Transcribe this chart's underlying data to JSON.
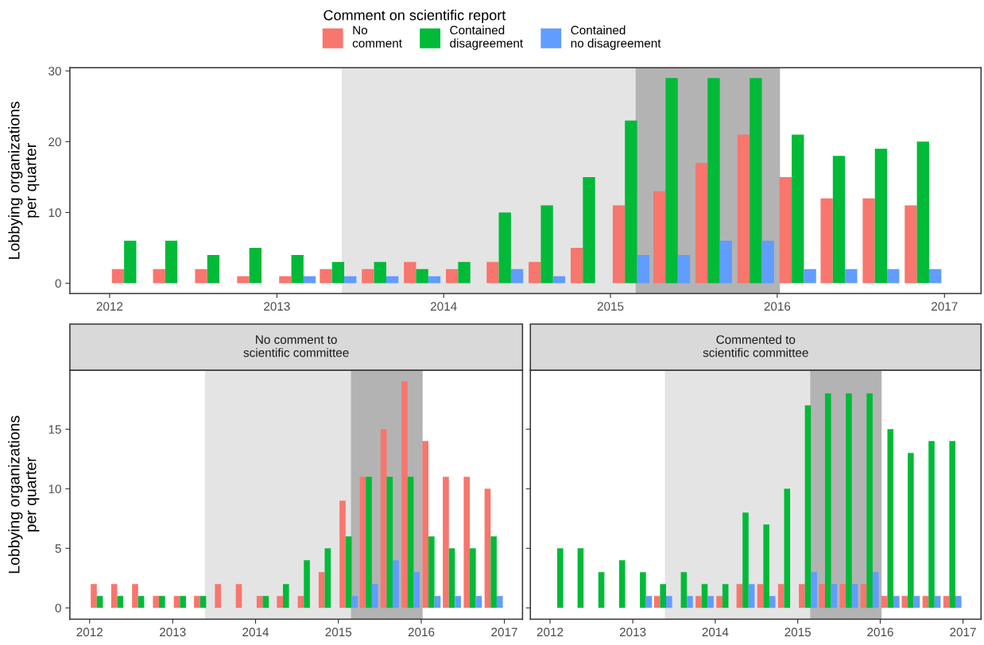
{
  "chart_data": [
    {
      "type": "bar",
      "ylabel": "Lobbying organizations\nper quarter",
      "legend_title": "Comment on\nscientific report",
      "legend": "top",
      "x": [
        "2012-02-15",
        "2012-05-15",
        "2012-08-15",
        "2012-11-15",
        "2013-02-15",
        "2013-05-15",
        "2013-08-15",
        "2013-11-15",
        "2014-02-15",
        "2014-05-15",
        "2014-08-15",
        "2014-11-15",
        "2015-02-15",
        "2015-05-15",
        "2015-08-15",
        "2015-11-15",
        "2016-02-15",
        "2016-05-15",
        "2016-08-15",
        "2016-11-15"
      ],
      "series": [
        {
          "name": "No\ncomment",
          "color": "#f8766d",
          "values": [
            2,
            2,
            2,
            1,
            1,
            2,
            2,
            3,
            2,
            3,
            3,
            5,
            11,
            13,
            17,
            21,
            15,
            12,
            12,
            11
          ]
        },
        {
          "name": "Contained\ndisagreement",
          "color": "#00ba38",
          "values": [
            6,
            6,
            4,
            5,
            4,
            3,
            3,
            2,
            3,
            10,
            11,
            15,
            23,
            29,
            29,
            29,
            21,
            18,
            19,
            20
          ]
        },
        {
          "name": "Contained\nno disagreement",
          "color": "#619cff",
          "values": [
            null,
            null,
            null,
            null,
            1,
            1,
            1,
            1,
            null,
            2,
            1,
            null,
            4,
            4,
            6,
            6,
            2,
            2,
            2,
            2
          ]
        }
      ],
      "xlim": [
        "2011-10-06",
        "2017-03-22"
      ],
      "xticks": [
        {
          "value": "2012-01-01",
          "label": "2012"
        },
        {
          "value": "2013-01-01",
          "label": "2013"
        },
        {
          "value": "2014-01-01",
          "label": "2014"
        },
        {
          "value": "2015-01-01",
          "label": "2015"
        },
        {
          "value": "2016-01-01",
          "label": "2016"
        },
        {
          "value": "2017-01-01",
          "label": "2017"
        }
      ],
      "ylim": [
        -1.45,
        30.45
      ],
      "yticks": [
        0,
        10,
        20,
        30
      ],
      "bands": [
        {
          "axis": "x",
          "from": "2013-05-23",
          "to": "2015-02-25",
          "color": "#e4e4e4"
        },
        {
          "axis": "x",
          "from": "2015-02-25",
          "to": "2016-01-07",
          "color": "#b3b3b3"
        }
      ],
      "grid": false
    },
    {
      "type": "bar",
      "title": "No comment to\nscientific committee",
      "ylabel": "Lobbying organizations\nper quarter",
      "x": [
        "2012-02-15",
        "2012-05-15",
        "2012-08-15",
        "2012-11-15",
        "2013-02-15",
        "2013-05-15",
        "2013-08-15",
        "2013-11-15",
        "2014-02-15",
        "2014-05-15",
        "2014-08-15",
        "2014-11-15",
        "2015-02-15",
        "2015-05-15",
        "2015-08-15",
        "2015-11-15",
        "2016-02-15",
        "2016-05-15",
        "2016-08-15",
        "2016-11-15"
      ],
      "series": [
        {
          "color": "#f8766d",
          "values": [
            2,
            2,
            2,
            1,
            1,
            1,
            2,
            2,
            1,
            1,
            1,
            3,
            9,
            11,
            15,
            19,
            14,
            11,
            11,
            10
          ]
        },
        {
          "color": "#00ba38",
          "values": [
            1,
            1,
            1,
            1,
            1,
            1,
            null,
            null,
            1,
            2,
            4,
            5,
            6,
            11,
            11,
            11,
            6,
            5,
            5,
            6
          ]
        },
        {
          "color": "#619cff",
          "values": [
            null,
            null,
            null,
            null,
            null,
            null,
            null,
            null,
            null,
            null,
            null,
            null,
            1,
            2,
            4,
            3,
            1,
            1,
            1,
            1
          ]
        }
      ],
      "xlim": [
        "2011-10-06",
        "2017-03-22"
      ],
      "xticks": [
        {
          "value": "2012-01-01",
          "label": "2012"
        },
        {
          "value": "2013-01-01",
          "label": "2013"
        },
        {
          "value": "2014-01-01",
          "label": "2014"
        },
        {
          "value": "2015-01-01",
          "label": "2015"
        },
        {
          "value": "2016-01-01",
          "label": "2016"
        },
        {
          "value": "2017-01-01",
          "label": "2017"
        }
      ],
      "ylim": [
        -0.95,
        19.95
      ],
      "yticks": [
        0,
        5,
        10,
        15
      ],
      "bands": [
        {
          "axis": "x",
          "from": "2013-05-23",
          "to": "2015-02-25",
          "color": "#e4e4e4"
        },
        {
          "axis": "x",
          "from": "2015-02-25",
          "to": "2016-01-07",
          "color": "#b3b3b3"
        }
      ],
      "grid": false
    },
    {
      "type": "bar",
      "title": "Commented to\nscientific committee",
      "tick_labels": "x",
      "x": [
        "2012-02-15",
        "2012-05-15",
        "2012-08-15",
        "2012-11-15",
        "2013-02-15",
        "2013-05-15",
        "2013-08-15",
        "2013-11-15",
        "2014-02-15",
        "2014-05-15",
        "2014-08-15",
        "2014-11-15",
        "2015-02-15",
        "2015-05-15",
        "2015-08-15",
        "2015-11-15",
        "2016-02-15",
        "2016-05-15",
        "2016-08-15",
        "2016-11-15"
      ],
      "series": [
        {
          "color": "#f8766d",
          "values": [
            null,
            null,
            null,
            null,
            null,
            1,
            null,
            1,
            1,
            2,
            2,
            2,
            2,
            2,
            2,
            2,
            1,
            1,
            1,
            1
          ]
        },
        {
          "color": "#00ba38",
          "values": [
            5,
            5,
            3,
            4,
            3,
            2,
            3,
            2,
            2,
            8,
            7,
            10,
            17,
            18,
            18,
            18,
            15,
            13,
            14,
            14
          ]
        },
        {
          "color": "#619cff",
          "values": [
            null,
            null,
            null,
            null,
            1,
            1,
            1,
            1,
            null,
            2,
            1,
            null,
            3,
            2,
            2,
            3,
            1,
            1,
            1,
            1
          ]
        }
      ],
      "xlim": [
        "2011-10-06",
        "2017-03-22"
      ],
      "xticks": [
        {
          "value": "2012-01-01",
          "label": "2012"
        },
        {
          "value": "2013-01-01",
          "label": "2013"
        },
        {
          "value": "2014-01-01",
          "label": "2014"
        },
        {
          "value": "2015-01-01",
          "label": "2015"
        },
        {
          "value": "2016-01-01",
          "label": "2016"
        },
        {
          "value": "2017-01-01",
          "label": "2017"
        }
      ],
      "ylim": [
        -0.95,
        19.95
      ],
      "yticks": [
        0,
        5,
        10,
        15
      ],
      "bands": [
        {
          "axis": "x",
          "from": "2013-05-23",
          "to": "2015-02-25",
          "color": "#e4e4e4"
        },
        {
          "axis": "x",
          "from": "2015-02-25",
          "to": "2016-01-07",
          "color": "#b3b3b3"
        }
      ],
      "grid": false
    }
  ]
}
